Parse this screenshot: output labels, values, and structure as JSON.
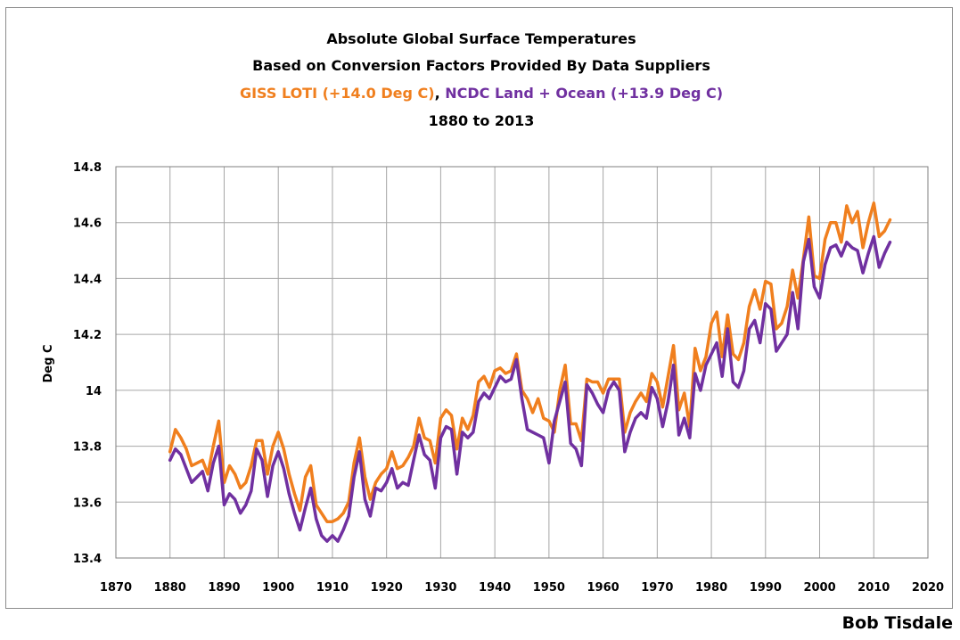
{
  "credit": "Bob Tisdale",
  "chart_data": {
    "type": "line",
    "title_lines": [
      "Absolute Global Surface Temperatures",
      "Based on Conversion Factors Provided By Data Suppliers"
    ],
    "subtitle": {
      "giss": "GISS LOTI (+14.0 Deg C)",
      "sep": ", ",
      "ncdc": "NCDC Land + Ocean (+13.9 Deg C)"
    },
    "period": "1880 to 2013",
    "ylabel": "Deg C",
    "xlabel": "",
    "xlim": [
      1870,
      2020
    ],
    "ylim": [
      13.4,
      14.8
    ],
    "xticks": [
      "1870",
      "1880",
      "1890",
      "1900",
      "1910",
      "1920",
      "1930",
      "1940",
      "1950",
      "1960",
      "1970",
      "1980",
      "1990",
      "2000",
      "2010",
      "2020"
    ],
    "yticks": [
      "13.4",
      "13.6",
      "13.8",
      "14",
      "14.2",
      "14.4",
      "14.6",
      "14.8"
    ],
    "grid": true,
    "legend": "none",
    "x": [
      1880,
      1881,
      1882,
      1883,
      1884,
      1885,
      1886,
      1887,
      1888,
      1889,
      1890,
      1891,
      1892,
      1893,
      1894,
      1895,
      1896,
      1897,
      1898,
      1899,
      1900,
      1901,
      1902,
      1903,
      1904,
      1905,
      1906,
      1907,
      1908,
      1909,
      1910,
      1911,
      1912,
      1913,
      1914,
      1915,
      1916,
      1917,
      1918,
      1919,
      1920,
      1921,
      1922,
      1923,
      1924,
      1925,
      1926,
      1927,
      1928,
      1929,
      1930,
      1931,
      1932,
      1933,
      1934,
      1935,
      1936,
      1937,
      1938,
      1939,
      1940,
      1941,
      1942,
      1943,
      1944,
      1945,
      1946,
      1947,
      1948,
      1949,
      1950,
      1951,
      1952,
      1953,
      1954,
      1955,
      1956,
      1957,
      1958,
      1959,
      1960,
      1961,
      1962,
      1963,
      1964,
      1965,
      1966,
      1967,
      1968,
      1969,
      1970,
      1971,
      1972,
      1973,
      1974,
      1975,
      1976,
      1977,
      1978,
      1979,
      1980,
      1981,
      1982,
      1983,
      1984,
      1985,
      1986,
      1987,
      1988,
      1989,
      1990,
      1991,
      1992,
      1993,
      1994,
      1995,
      1996,
      1997,
      1998,
      1999,
      2000,
      2001,
      2002,
      2003,
      2004,
      2005,
      2006,
      2007,
      2008,
      2009,
      2010,
      2011,
      2012,
      2013
    ],
    "series": [
      {
        "name": "GISS LOTI (+14.0 Deg C)",
        "color": "#f07f1e",
        "values": [
          13.78,
          13.86,
          13.83,
          13.79,
          13.73,
          13.74,
          13.75,
          13.7,
          13.8,
          13.89,
          13.67,
          13.73,
          13.7,
          13.65,
          13.67,
          13.73,
          13.82,
          13.82,
          13.7,
          13.8,
          13.85,
          13.79,
          13.7,
          13.63,
          13.57,
          13.69,
          13.73,
          13.59,
          13.56,
          13.53,
          13.53,
          13.54,
          13.56,
          13.6,
          13.74,
          13.83,
          13.69,
          13.61,
          13.67,
          13.7,
          13.72,
          13.78,
          13.72,
          13.73,
          13.76,
          13.8,
          13.9,
          13.83,
          13.82,
          13.74,
          13.9,
          13.93,
          13.91,
          13.79,
          13.9,
          13.86,
          13.91,
          14.03,
          14.05,
          14.01,
          14.07,
          14.08,
          14.06,
          14.07,
          14.13,
          14.0,
          13.97,
          13.92,
          13.97,
          13.9,
          13.89,
          13.85,
          14.0,
          14.09,
          13.88,
          13.88,
          13.82,
          14.04,
          14.03,
          14.03,
          13.99,
          14.04,
          14.04,
          14.04,
          13.85,
          13.92,
          13.96,
          13.99,
          13.96,
          14.06,
          14.03,
          13.94,
          14.05,
          14.16,
          13.93,
          13.99,
          13.87,
          14.15,
          14.07,
          14.12,
          14.24,
          14.28,
          14.12,
          14.27,
          14.13,
          14.11,
          14.17,
          14.3,
          14.36,
          14.29,
          14.39,
          14.38,
          14.22,
          14.24,
          14.3,
          14.43,
          14.33,
          14.47,
          14.62,
          14.41,
          14.4,
          14.54,
          14.6,
          14.6,
          14.53,
          14.66,
          14.6,
          14.64,
          14.51,
          14.6,
          14.67,
          14.55,
          14.57,
          14.61
        ]
      },
      {
        "name": "NCDC Land + Ocean (+13.9 Deg C)",
        "color": "#7030a0",
        "values": [
          13.75,
          13.79,
          13.77,
          13.72,
          13.67,
          13.69,
          13.71,
          13.64,
          13.74,
          13.8,
          13.59,
          13.63,
          13.61,
          13.56,
          13.59,
          13.64,
          13.79,
          13.75,
          13.62,
          13.73,
          13.78,
          13.72,
          13.63,
          13.56,
          13.5,
          13.58,
          13.65,
          13.54,
          13.48,
          13.46,
          13.48,
          13.46,
          13.5,
          13.55,
          13.69,
          13.78,
          13.61,
          13.55,
          13.65,
          13.64,
          13.67,
          13.72,
          13.65,
          13.67,
          13.66,
          13.75,
          13.84,
          13.77,
          13.75,
          13.65,
          13.83,
          13.87,
          13.86,
          13.7,
          13.85,
          13.83,
          13.85,
          13.96,
          13.99,
          13.97,
          14.01,
          14.05,
          14.03,
          14.04,
          14.11,
          13.97,
          13.86,
          13.85,
          13.84,
          13.83,
          13.74,
          13.89,
          13.96,
          14.03,
          13.81,
          13.79,
          13.73,
          14.02,
          13.99,
          13.95,
          13.92,
          14.0,
          14.03,
          14.0,
          13.78,
          13.85,
          13.9,
          13.92,
          13.9,
          14.01,
          13.97,
          13.87,
          13.96,
          14.09,
          13.84,
          13.9,
          13.83,
          14.06,
          14.0,
          14.09,
          14.13,
          14.17,
          14.05,
          14.22,
          14.03,
          14.01,
          14.07,
          14.22,
          14.25,
          14.17,
          14.31,
          14.29,
          14.14,
          14.17,
          14.2,
          14.35,
          14.22,
          14.46,
          14.54,
          14.37,
          14.33,
          14.45,
          14.51,
          14.52,
          14.48,
          14.53,
          14.51,
          14.5,
          14.42,
          14.49,
          14.55,
          14.44,
          14.49,
          14.53
        ]
      }
    ]
  }
}
